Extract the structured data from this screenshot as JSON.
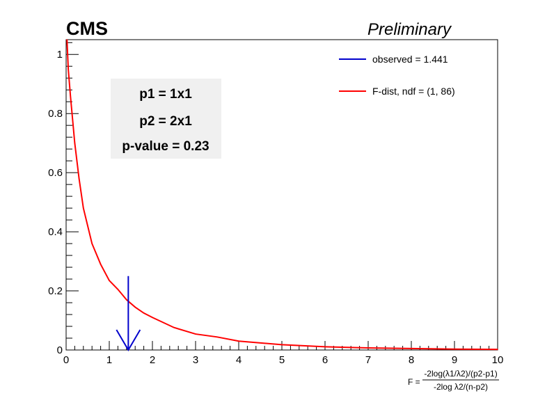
{
  "chart_data": {
    "type": "line",
    "header": {
      "experiment": "CMS",
      "status": "Preliminary"
    },
    "xlabel": {
      "prefix": "F = ",
      "numerator": "-2log(λ1/λ2)/(p2-p1)",
      "denominator": "-2log λ2/(n-p2)"
    },
    "ylabel": "",
    "xlim": [
      0,
      10
    ],
    "ylim": [
      0,
      1.05
    ],
    "x_ticks": [
      0,
      1,
      2,
      3,
      4,
      5,
      6,
      7,
      8,
      9,
      10
    ],
    "x_tick_labels": [
      "0",
      "1",
      "2",
      "3",
      "4",
      "5",
      "6",
      "7",
      "8",
      "9",
      "10"
    ],
    "y_ticks": [
      0,
      0.2,
      0.4,
      0.6,
      0.8,
      1
    ],
    "y_tick_labels": [
      "0",
      "0.2",
      "0.4",
      "0.6",
      "0.8",
      "1"
    ],
    "grid": false,
    "legend_position": "top-right",
    "series": [
      {
        "name": "F-dist, ndf = (1, 86)",
        "color": "#ff0000",
        "x": [
          0.02,
          0.05,
          0.1,
          0.15,
          0.2,
          0.3,
          0.4,
          0.5,
          0.6,
          0.8,
          1.0,
          1.2,
          1.4,
          1.6,
          1.8,
          2.0,
          2.5,
          3.0,
          3.5,
          4.0,
          5.0,
          6.0,
          7.0,
          8.0,
          9.0,
          10.0
        ],
        "y": [
          1.05,
          0.95,
          0.86,
          0.78,
          0.7,
          0.58,
          0.48,
          0.42,
          0.36,
          0.29,
          0.235,
          0.205,
          0.17,
          0.145,
          0.125,
          0.11,
          0.076,
          0.054,
          0.044,
          0.03,
          0.018,
          0.011,
          0.007,
          0.005,
          0.003,
          0.002
        ]
      }
    ],
    "observed": {
      "label": "observed = 1.441",
      "value": 1.441,
      "color": "#0000cc",
      "arrow_top": 0.25
    },
    "info_box": {
      "lines": [
        "p1 = 1x1",
        "p2 = 2x1",
        "p-value = 0.23"
      ]
    }
  }
}
